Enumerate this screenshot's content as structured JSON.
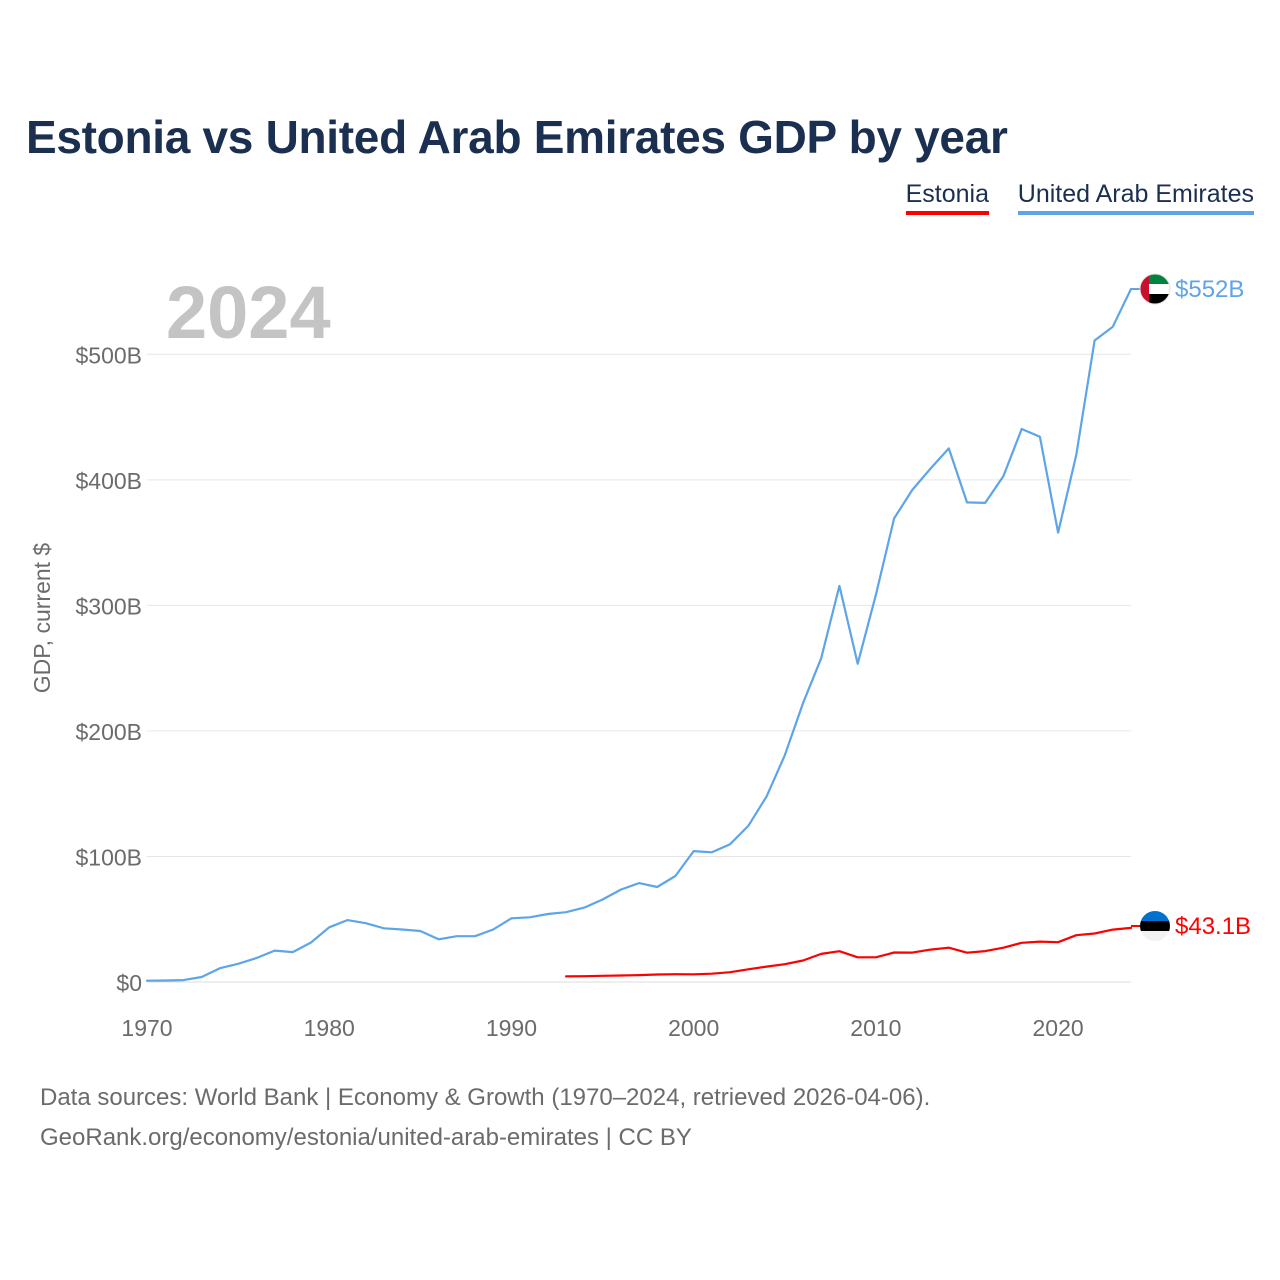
{
  "title": "Estonia vs United Arab Emirates GDP by year",
  "year_label": "2024",
  "sources": {
    "line1": "Data sources: World Bank | Economy & Growth (1970–2024, retrieved 2026-04-06).",
    "line2": "GeoRank.org/economy/estonia/united-arab-emirates | CC BY"
  },
  "colors": {
    "estonia": "#ff0000",
    "uae": "#5ea4e8",
    "title": "#1b2f50",
    "axis": "#6b6b6b",
    "grid": "#e6e6e6",
    "year": "#c4c4c4"
  },
  "chart_data": {
    "type": "line",
    "title": "Estonia vs United Arab Emirates GDP by year",
    "xlabel": "",
    "ylabel": "GDP, current $",
    "xlim": [
      1970,
      2024
    ],
    "ylim": [
      0,
      552
    ],
    "grid": true,
    "legend": "top-right",
    "x_ticks": [
      1970,
      1980,
      1990,
      2000,
      2010,
      2020
    ],
    "y_ticks": [
      {
        "value": 0,
        "label": "$0"
      },
      {
        "value": 100,
        "label": "$100B"
      },
      {
        "value": 200,
        "label": "$200B"
      },
      {
        "value": 300,
        "label": "$300B"
      },
      {
        "value": 400,
        "label": "$400B"
      },
      {
        "value": 500,
        "label": "$500B"
      }
    ],
    "series": [
      {
        "key": "estonia",
        "name": "Estonia",
        "end_label": "$43.1B",
        "points": [
          [
            1993,
            4.5
          ],
          [
            1994,
            4.6
          ],
          [
            1995,
            4.9
          ],
          [
            1996,
            5.2
          ],
          [
            1997,
            5.5
          ],
          [
            1998,
            6.0
          ],
          [
            1999,
            6.2
          ],
          [
            2000,
            6.1
          ],
          [
            2001,
            6.6
          ],
          [
            2002,
            7.8
          ],
          [
            2003,
            10.1
          ],
          [
            2004,
            12.3
          ],
          [
            2005,
            14.2
          ],
          [
            2006,
            17.1
          ],
          [
            2007,
            22.4
          ],
          [
            2008,
            24.5
          ],
          [
            2009,
            19.7
          ],
          [
            2010,
            19.7
          ],
          [
            2011,
            23.5
          ],
          [
            2012,
            23.4
          ],
          [
            2013,
            25.8
          ],
          [
            2014,
            27.3
          ],
          [
            2015,
            23.3
          ],
          [
            2016,
            24.6
          ],
          [
            2017,
            27.3
          ],
          [
            2018,
            31.2
          ],
          [
            2019,
            32.2
          ],
          [
            2020,
            31.7
          ],
          [
            2021,
            37.3
          ],
          [
            2022,
            38.6
          ],
          [
            2023,
            41.7
          ],
          [
            2024,
            43.1
          ]
        ]
      },
      {
        "key": "uae",
        "name": "United Arab Emirates",
        "end_label": "$552B",
        "points": [
          [
            1970,
            1.0
          ],
          [
            1971,
            1.2
          ],
          [
            1972,
            1.5
          ],
          [
            1973,
            4.0
          ],
          [
            1974,
            11.0
          ],
          [
            1975,
            14.5
          ],
          [
            1976,
            19.0
          ],
          [
            1977,
            25.0
          ],
          [
            1978,
            23.8
          ],
          [
            1979,
            31.5
          ],
          [
            1980,
            43.6
          ],
          [
            1981,
            49.3
          ],
          [
            1982,
            46.8
          ],
          [
            1983,
            42.8
          ],
          [
            1984,
            41.8
          ],
          [
            1985,
            40.6
          ],
          [
            1986,
            34.0
          ],
          [
            1987,
            36.5
          ],
          [
            1988,
            36.5
          ],
          [
            1989,
            41.8
          ],
          [
            1990,
            50.7
          ],
          [
            1991,
            51.5
          ],
          [
            1992,
            54.2
          ],
          [
            1993,
            55.6
          ],
          [
            1994,
            59.3
          ],
          [
            1995,
            65.7
          ],
          [
            1996,
            73.6
          ],
          [
            1997,
            78.8
          ],
          [
            1998,
            75.7
          ],
          [
            1999,
            84.4
          ],
          [
            2000,
            104.3
          ],
          [
            2001,
            103.3
          ],
          [
            2002,
            109.8
          ],
          [
            2003,
            124.3
          ],
          [
            2004,
            147.8
          ],
          [
            2005,
            180.6
          ],
          [
            2006,
            222.1
          ],
          [
            2007,
            257.9
          ],
          [
            2008,
            315.5
          ],
          [
            2009,
            253.5
          ],
          [
            2010,
            308.5
          ],
          [
            2011,
            369.3
          ],
          [
            2012,
            392.0
          ],
          [
            2013,
            409.0
          ],
          [
            2014,
            425.0
          ],
          [
            2015,
            382.0
          ],
          [
            2016,
            381.6
          ],
          [
            2017,
            403.0
          ],
          [
            2018,
            440.5
          ],
          [
            2019,
            434.3
          ],
          [
            2020,
            358.0
          ],
          [
            2021,
            420.0
          ],
          [
            2022,
            511.0
          ],
          [
            2023,
            522.0
          ],
          [
            2024,
            552.0
          ]
        ]
      }
    ]
  },
  "legend": [
    {
      "key": "estonia",
      "label": "Estonia"
    },
    {
      "key": "uae",
      "label": "United Arab Emirates"
    }
  ]
}
